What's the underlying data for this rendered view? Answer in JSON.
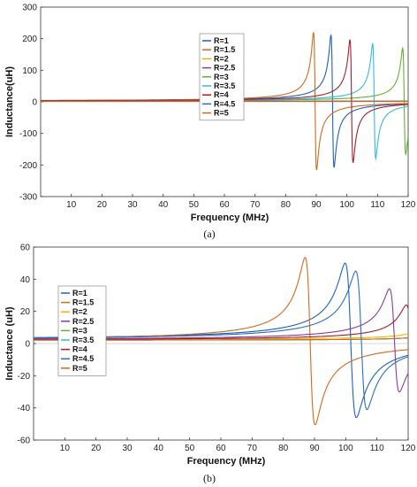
{
  "chart_data": [
    {
      "type": "line",
      "panel_label": "(a)",
      "xlabel": "Frequency (MHz)",
      "ylabel": "Inductance(uH)",
      "xlim": [
        0,
        120
      ],
      "ylim": [
        -300,
        300
      ],
      "xticks": [
        10,
        20,
        30,
        40,
        50,
        60,
        70,
        80,
        90,
        100,
        110,
        120
      ],
      "yticks": [
        -300,
        -200,
        -100,
        0,
        100,
        200,
        300
      ],
      "legend_position": "upper-center",
      "series": [
        {
          "name": "R=1",
          "color": "#1f5fbf",
          "base": 2,
          "f0": 95.3,
          "peak": 210,
          "width": 0.5
        },
        {
          "name": "R=1.5",
          "color": "#d2691e",
          "base": 2,
          "f0": 89.6,
          "peak": 218,
          "width": 0.5
        },
        {
          "name": "R=2",
          "color": "#e6b800",
          "base": 2,
          "f0": 124,
          "peak": 0,
          "width": 0.5
        },
        {
          "name": "R=2.5",
          "color": "#8a3a9e",
          "base": 2,
          "f0": 124,
          "peak": 0,
          "width": 0.5
        },
        {
          "name": "R=3",
          "color": "#66b032",
          "base": 2,
          "f0": 118.7,
          "peak": 168,
          "width": 0.5
        },
        {
          "name": "R=3.5",
          "color": "#35b8e0",
          "base": 2,
          "f0": 108.9,
          "peak": 182,
          "width": 0.5
        },
        {
          "name": "R=4",
          "color": "#a31f2e",
          "base": 2,
          "f0": 101.5,
          "peak": 195,
          "width": 0.5
        },
        {
          "name": "R=4.5",
          "color": "#2c6fbf",
          "base": 2,
          "f0": 124,
          "peak": 0,
          "width": 0.5
        },
        {
          "name": "R=5",
          "color": "#d2691e",
          "base": 2,
          "f0": 124,
          "peak": 0,
          "width": 0.5
        }
      ]
    },
    {
      "type": "line",
      "panel_label": "(b)",
      "xlabel": "Frequency (MHz)",
      "ylabel": "Inductance (uH)",
      "xlim": [
        0,
        120
      ],
      "ylim": [
        -60,
        60
      ],
      "xticks": [
        10,
        20,
        30,
        40,
        50,
        60,
        70,
        80,
        90,
        100,
        110,
        120
      ],
      "yticks": [
        -60,
        -40,
        -20,
        0,
        20,
        40,
        60
      ],
      "legend_position": "upper-left",
      "series": [
        {
          "name": "R=1",
          "color": "#1f5fbf",
          "base": 2,
          "f0": 101.6,
          "peak": 48,
          "width": 1.8
        },
        {
          "name": "R=1.5",
          "color": "#d2691e",
          "base": 1.5,
          "f0": 88.6,
          "peak": 52,
          "width": 1.6
        },
        {
          "name": "R=2",
          "color": "#e6b800",
          "base": 2.5,
          "f0": 126,
          "peak": 6,
          "width": 2.0
        },
        {
          "name": "R=2.5",
          "color": "#8a3a9e",
          "base": 2,
          "f0": 115.6,
          "peak": 32,
          "width": 1.6
        },
        {
          "name": "R=3",
          "color": "#66b032",
          "base": 2,
          "f0": 130,
          "peak": 4,
          "width": 2.0
        },
        {
          "name": "R=3.5",
          "color": "#35b8e0",
          "base": 2,
          "f0": 130,
          "peak": 4,
          "width": 2.0
        },
        {
          "name": "R=4",
          "color": "#a31f2e",
          "base": 2,
          "f0": 121,
          "peak": 22,
          "width": 1.6
        },
        {
          "name": "R=4.5",
          "color": "#2c6fbf",
          "base": 2,
          "f0": 105,
          "peak": 43,
          "width": 1.8
        },
        {
          "name": "R=5",
          "color": "#d2691e",
          "base": 2,
          "f0": 130,
          "peak": 4,
          "width": 2.0
        }
      ]
    }
  ]
}
